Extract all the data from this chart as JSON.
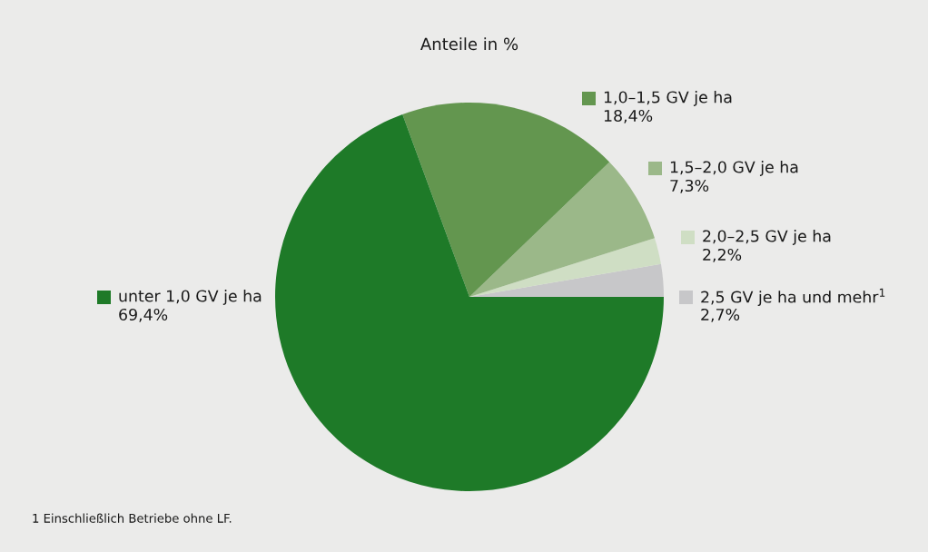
{
  "chart_data": {
    "type": "pie",
    "title": "Anteile in %",
    "categories": [
      "2,5 GV je ha und mehr$^{1}$",
      "2,0–2,5 GV je ha",
      "1,5–2,0 GV je ha",
      "1,0–1,5 GV je ha",
      "unter 1,0 GV je ha"
    ],
    "values": [
      2.7,
      2.2,
      7.3,
      18.4,
      69.4
    ],
    "value_labels": [
      "2,7%",
      "2,2%",
      "7,3%",
      "18,4%",
      "69,4%"
    ],
    "colors": [
      "#c7c7c9",
      "#cfdec4",
      "#9bb889",
      "#63964f",
      "#1e7a28"
    ],
    "legend": "right",
    "annotations": [
      "1 Einschließlich Betriebe ohne LF."
    ]
  }
}
